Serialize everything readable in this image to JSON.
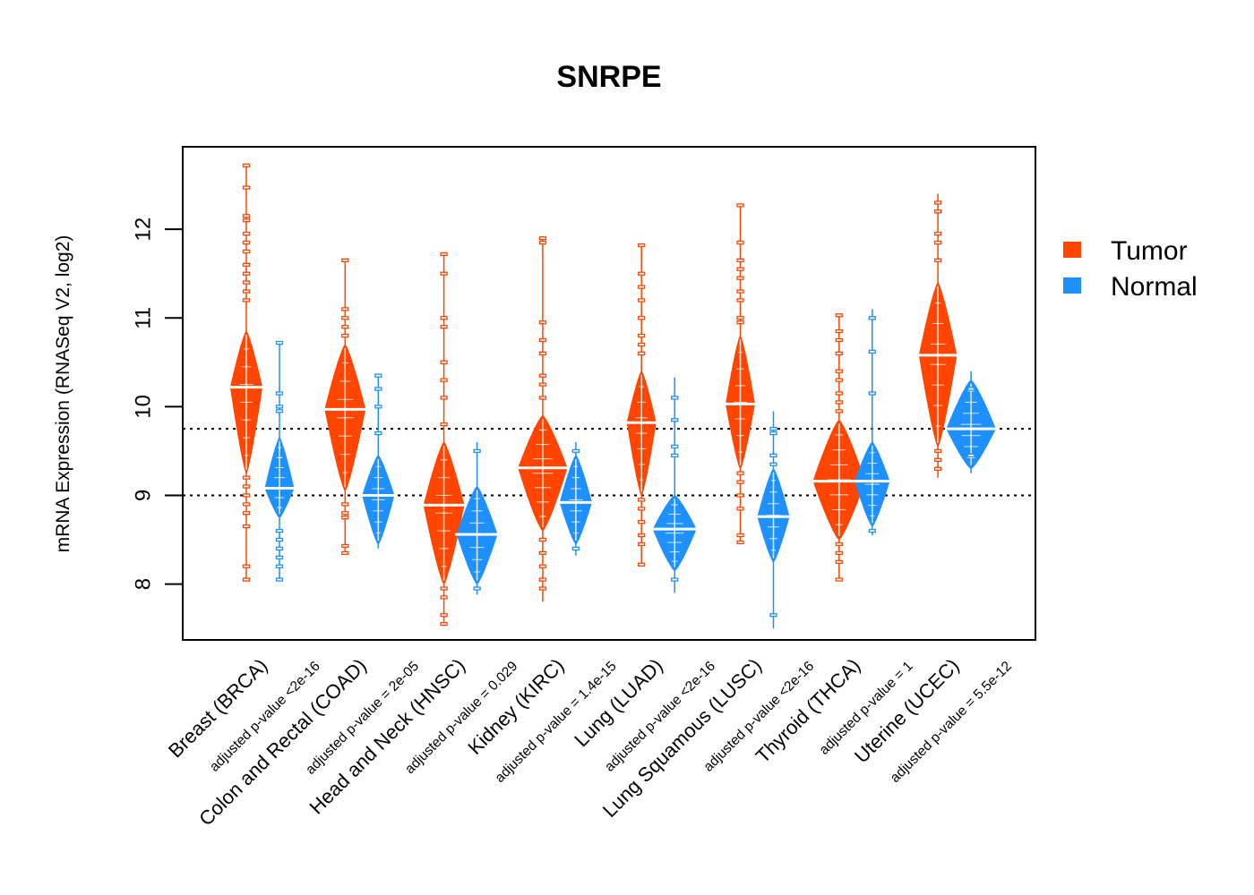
{
  "chart_data": {
    "type": "violin",
    "title": "SNRPE",
    "xlabel": "",
    "ylabel": "mRNA Expression (RNASeq V2, log2)",
    "ylim": [
      7.37,
      12.93
    ],
    "yticks": [
      8,
      9,
      10,
      11,
      12
    ],
    "reference_lines": [
      9.0,
      9.75
    ],
    "grid": false,
    "legend": {
      "position": "right",
      "entries": [
        {
          "name": "Tumor",
          "color": "#FF4500"
        },
        {
          "name": "Normal",
          "color": "#1E90FF"
        }
      ]
    },
    "categories": [
      {
        "label": "Breast (BRCA)",
        "pvalue": "adjusted p-value <2e-16"
      },
      {
        "label": "Colon and Rectal (COAD)",
        "pvalue": "adjusted p-value = 2e-05"
      },
      {
        "label": "Head and Neck (HNSC)",
        "pvalue": "adjusted p-value = 0.029"
      },
      {
        "label": "Kidney (KIRC)",
        "pvalue": "adjusted p-value = 1.4e-15"
      },
      {
        "label": "Lung (LUAD)",
        "pvalue": "adjusted p-value <2e-16"
      },
      {
        "label": "Lung Squamous (LUSC)",
        "pvalue": "adjusted p-value <2e-16"
      },
      {
        "label": "Thyroid (THCA)",
        "pvalue": "adjusted p-value = 1"
      },
      {
        "label": "Uterine (UCEC)",
        "pvalue": "adjusted p-value = 5.5e-12"
      }
    ],
    "series": [
      {
        "name": "Tumor",
        "color": "#FF4500",
        "groups": [
          {
            "median": 10.22,
            "body_low": 9.25,
            "body_high": 10.85,
            "min": 8.05,
            "max": 12.72,
            "peak_width": 0.55,
            "outliers": [
              12.72,
              12.47,
              12.15,
              12.1,
              11.95,
              11.85,
              11.75,
              11.6,
              11.5,
              11.4,
              11.3,
              11.2,
              9.2,
              9.1,
              9.0,
              8.9,
              8.8,
              8.65,
              8.2,
              8.05
            ]
          },
          {
            "median": 9.97,
            "body_low": 9.05,
            "body_high": 10.7,
            "min": 8.35,
            "max": 11.65,
            "peak_width": 0.7,
            "outliers": [
              11.65,
              11.1,
              11.0,
              10.9,
              10.8,
              8.9,
              8.8,
              8.75,
              8.43,
              8.35
            ]
          },
          {
            "median": 8.89,
            "body_low": 8.0,
            "body_high": 9.6,
            "min": 7.55,
            "max": 11.72,
            "peak_width": 0.7,
            "outliers": [
              11.72,
              11.5,
              11.0,
              10.9,
              10.5,
              10.3,
              10.1,
              9.8,
              7.95,
              7.85,
              7.65,
              7.55
            ]
          },
          {
            "median": 9.31,
            "body_low": 8.6,
            "body_high": 9.9,
            "min": 7.8,
            "max": 11.9,
            "peak_width": 0.85,
            "outliers": [
              11.9,
              11.85,
              10.95,
              10.75,
              10.6,
              10.35,
              10.25,
              10.1,
              8.5,
              8.35,
              8.2,
              8.05,
              7.95
            ]
          },
          {
            "median": 9.82,
            "body_low": 9.0,
            "body_high": 10.4,
            "min": 8.22,
            "max": 11.82,
            "peak_width": 0.5,
            "outliers": [
              11.82,
              11.5,
              11.35,
              11.2,
              11.0,
              10.8,
              10.7,
              10.6,
              8.95,
              8.85,
              8.7,
              8.55,
              8.45,
              8.22
            ]
          },
          {
            "median": 10.03,
            "body_low": 9.3,
            "body_high": 10.8,
            "min": 8.47,
            "max": 12.27,
            "peak_width": 0.5,
            "outliers": [
              12.27,
              11.85,
              11.65,
              11.55,
              11.45,
              11.3,
              11.2,
              11.0,
              10.95,
              9.25,
              9.15,
              9.0,
              8.85,
              8.55,
              8.47
            ]
          },
          {
            "median": 9.16,
            "body_low": 8.5,
            "body_high": 9.85,
            "min": 8.05,
            "max": 11.03,
            "peak_width": 0.9,
            "outliers": [
              11.03,
              10.85,
              10.75,
              10.6,
              10.4,
              10.3,
              10.15,
              10.05,
              9.95,
              8.45,
              8.35,
              8.25,
              8.05
            ]
          },
          {
            "median": 10.58,
            "body_low": 9.55,
            "body_high": 11.4,
            "min": 9.2,
            "max": 12.4,
            "peak_width": 0.65,
            "outliers": [
              12.3,
              12.2,
              11.95,
              11.85,
              11.65,
              9.5,
              9.4,
              9.3
            ]
          }
        ]
      },
      {
        "name": "Normal",
        "color": "#1E90FF",
        "groups": [
          {
            "median": 9.08,
            "body_low": 8.75,
            "body_high": 9.65,
            "min": 8.05,
            "max": 10.72,
            "peak_width": 0.5,
            "outliers": [
              10.72,
              10.15,
              10.0,
              9.95,
              8.6,
              8.5,
              8.4,
              8.3,
              8.2,
              8.05
            ]
          },
          {
            "median": 9.0,
            "body_low": 8.45,
            "body_high": 9.45,
            "min": 8.4,
            "max": 10.35,
            "peak_width": 0.55,
            "outliers": [
              10.35,
              10.2,
              10.0,
              9.7
            ]
          },
          {
            "median": 8.56,
            "body_low": 8.0,
            "body_high": 9.1,
            "min": 7.88,
            "max": 9.6,
            "peak_width": 0.7,
            "outliers": [
              9.5,
              7.95
            ]
          },
          {
            "median": 8.92,
            "body_low": 8.45,
            "body_high": 9.45,
            "min": 8.32,
            "max": 9.6,
            "peak_width": 0.55,
            "outliers": [
              9.5,
              8.4
            ]
          },
          {
            "median": 8.62,
            "body_low": 8.15,
            "body_high": 9.0,
            "min": 7.9,
            "max": 10.33,
            "peak_width": 0.75,
            "outliers": [
              10.1,
              9.85,
              9.55,
              9.45,
              8.05
            ]
          },
          {
            "median": 8.76,
            "body_low": 8.25,
            "body_high": 9.3,
            "min": 7.5,
            "max": 9.95,
            "peak_width": 0.55,
            "outliers": [
              9.75,
              9.7,
              9.45,
              9.35,
              7.65
            ]
          },
          {
            "median": 9.16,
            "body_low": 8.65,
            "body_high": 9.6,
            "min": 8.55,
            "max": 11.1,
            "peak_width": 0.6,
            "outliers": [
              11.0,
              10.62,
              10.15,
              8.6
            ]
          },
          {
            "median": 9.75,
            "body_low": 9.3,
            "body_high": 10.3,
            "min": 9.25,
            "max": 10.4,
            "peak_width": 0.85,
            "outliers": [
              10.2,
              9.45
            ]
          }
        ]
      }
    ]
  }
}
